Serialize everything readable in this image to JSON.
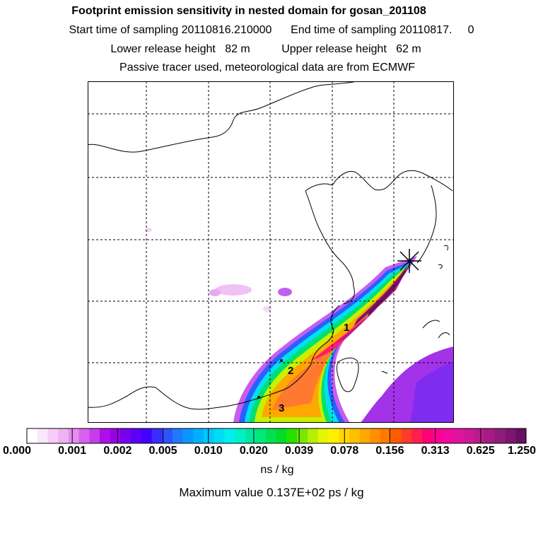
{
  "title": "Footprint emission sensitivity in nested domain for gosan_201108",
  "sampling": {
    "start_label": "Start time of sampling 20110816.210000",
    "end_label": "End time of sampling 20110817.",
    "end_suffix": "0"
  },
  "release": {
    "lower_label": "Lower release height   82 m",
    "upper_label": "Upper release height   62 m"
  },
  "tracer_note": "Passive tracer used, meteorological data are from ECMWF",
  "markers": [
    "1",
    "2",
    "3"
  ],
  "colorbar": {
    "labels": [
      "0.000",
      "0.001",
      "0.002",
      "0.005",
      "0.010",
      "0.020",
      "0.039",
      "0.078",
      "0.156",
      "0.313",
      "0.625",
      "1.250"
    ],
    "colors": [
      "#ffffff",
      "#fbe6fb",
      "#f5cdf6",
      "#f0b3f2",
      "#e58ef0",
      "#d763ee",
      "#c53dea",
      "#ad10e6",
      "#9a00e8",
      "#7700ee",
      "#5c00f5",
      "#4400ff",
      "#3a2bff",
      "#2f52ff",
      "#1e7aff",
      "#0a96ff",
      "#00b0ff",
      "#00c8ff",
      "#00dcf5",
      "#00f0f0",
      "#00f0c8",
      "#00e8a0",
      "#00e878",
      "#00e050",
      "#00dc28",
      "#28e000",
      "#78e800",
      "#b4f000",
      "#e6f500",
      "#fff000",
      "#ffd700",
      "#ffbf00",
      "#ffa800",
      "#ff9000",
      "#ff7800",
      "#ff5a00",
      "#ff3c28",
      "#ff1e50",
      "#ff0078",
      "#ff0096",
      "#f00aa0",
      "#e0149c",
      "#cc1896",
      "#b81c8c",
      "#a41c84",
      "#901c7a",
      "#7c1670",
      "#6a1060"
    ],
    "units": "ns / kg"
  },
  "max_value": "Maximum value  0.137E+02 ps / kg"
}
